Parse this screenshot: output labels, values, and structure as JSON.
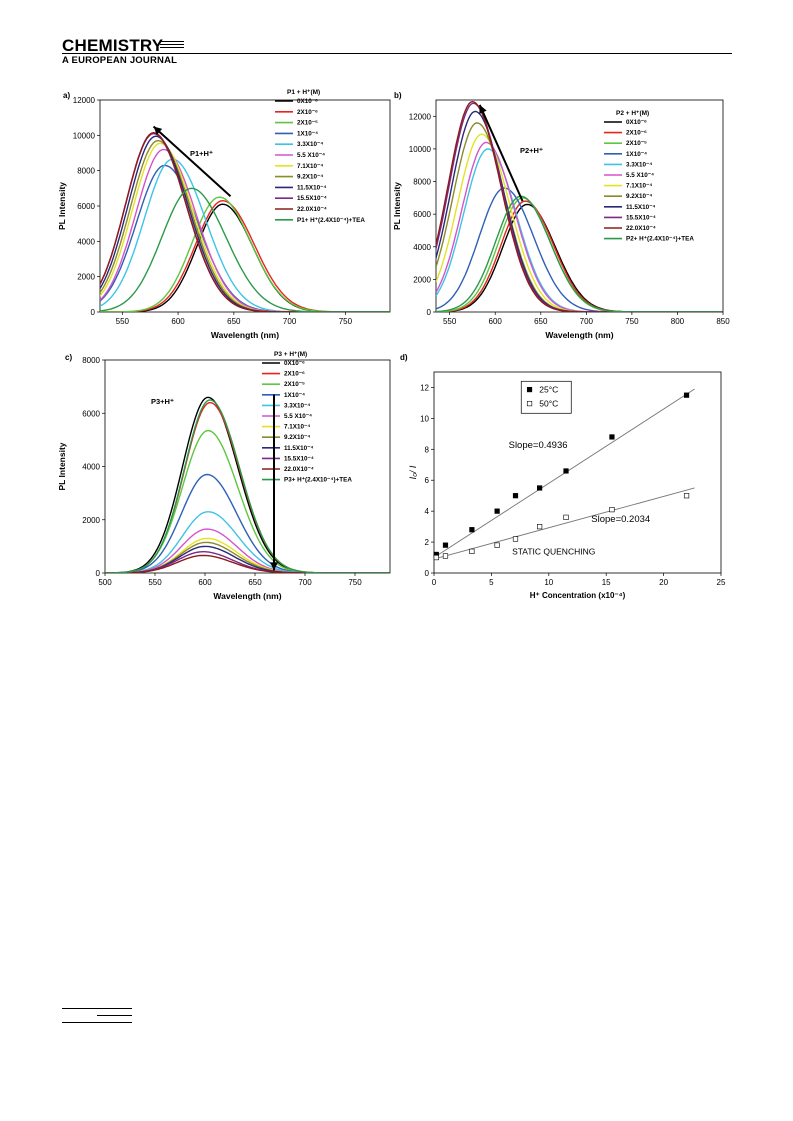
{
  "header": {
    "journal": "CHEMISTRY",
    "subtitle": "A EUROPEAN JOURNAL"
  },
  "chart_data": [
    {
      "type": "line",
      "panel_label": "a)",
      "xlabel": "Wavelength (nm)",
      "ylabel": "PL Intensity",
      "xlim": [
        530,
        790
      ],
      "ylim": [
        0,
        12000
      ],
      "xticks": [
        550,
        600,
        650,
        700,
        750
      ],
      "yticks": [
        0,
        2000,
        4000,
        6000,
        8000,
        10000,
        12000
      ],
      "legend_title": "P1 + H⁺(M)",
      "annotation": "P1+H⁺",
      "arrow": {
        "from": [
          647,
          6550
        ],
        "to": [
          578,
          10500
        ]
      },
      "series": [
        {
          "name": "0X10⁻⁶",
          "color": "#000000",
          "peak_x": 640,
          "peak_y": 6100,
          "width": 42
        },
        {
          "name": "2X10⁻⁶",
          "color": "#e8251d",
          "peak_x": 640,
          "peak_y": 6300,
          "width": 44
        },
        {
          "name": "2X10⁻⁵",
          "color": "#5ec640",
          "peak_x": 637,
          "peak_y": 6500,
          "width": 44
        },
        {
          "name": "1X10⁻⁴",
          "color": "#2f5fb6",
          "peak_x": 588,
          "peak_y": 8300,
          "width": 46
        },
        {
          "name": "3.3X10⁻⁴",
          "color": "#3ec3e6",
          "peak_x": 595,
          "peak_y": 8650,
          "width": 46
        },
        {
          "name": "5.5 X10⁻⁴",
          "color": "#d454c9",
          "peak_x": 587,
          "peak_y": 9200,
          "width": 45
        },
        {
          "name": "7.1X10⁻⁴",
          "color": "#e5e225",
          "peak_x": 584,
          "peak_y": 9550,
          "width": 45
        },
        {
          "name": "9.2X10⁻⁴",
          "color": "#8a8b2b",
          "peak_x": 582,
          "peak_y": 9700,
          "width": 45
        },
        {
          "name": "11.5X10⁻⁴",
          "color": "#2c2878",
          "peak_x": 580,
          "peak_y": 9950,
          "width": 45
        },
        {
          "name": "15.5X10⁻⁴",
          "color": "#7b2a86",
          "peak_x": 578,
          "peak_y": 10100,
          "width": 45
        },
        {
          "name": "22.0X10⁻⁴",
          "color": "#8e1b1b",
          "peak_x": 578,
          "peak_y": 10150,
          "width": 45
        },
        {
          "name": "P1+ H⁺(2.4X10⁻⁴)+TEA",
          "color": "#2a9a4a",
          "peak_x": 612,
          "peak_y": 7000,
          "width": 48
        }
      ]
    },
    {
      "type": "line",
      "panel_label": "b)",
      "xlabel": "Wavelength (nm)",
      "ylabel": "PL Intensity",
      "xlim": [
        535,
        850
      ],
      "ylim": [
        0,
        13000
      ],
      "xticks": [
        550,
        600,
        650,
        700,
        750,
        800,
        850
      ],
      "yticks": [
        0,
        2000,
        4000,
        6000,
        8000,
        10000,
        12000
      ],
      "legend_title": "P2 + H⁺(M)",
      "annotation": "P2+H⁺",
      "arrow": {
        "from": [
          630,
          6800
        ],
        "to": [
          583,
          12700
        ]
      },
      "series": [
        {
          "name": "0X10⁻⁶",
          "color": "#000000",
          "peak_x": 635,
          "peak_y": 6600,
          "width": 48
        },
        {
          "name": "2X10⁻⁶",
          "color": "#e8251d",
          "peak_x": 633,
          "peak_y": 6800,
          "width": 48
        },
        {
          "name": "2X10⁻⁵",
          "color": "#5ec640",
          "peak_x": 630,
          "peak_y": 7000,
          "width": 48
        },
        {
          "name": "1X10⁻⁴",
          "color": "#2f5fb6",
          "peak_x": 610,
          "peak_y": 7600,
          "width": 50
        },
        {
          "name": "3.3X10⁻⁴",
          "color": "#3ec3e6",
          "peak_x": 592,
          "peak_y": 10000,
          "width": 48
        },
        {
          "name": "5.5 X10⁻⁴",
          "color": "#d454c9",
          "peak_x": 590,
          "peak_y": 10400,
          "width": 48
        },
        {
          "name": "7.1X10⁻⁴",
          "color": "#e5e225",
          "peak_x": 585,
          "peak_y": 10900,
          "width": 48
        },
        {
          "name": "9.2X10⁻⁴",
          "color": "#8a8b2b",
          "peak_x": 580,
          "peak_y": 11600,
          "width": 48
        },
        {
          "name": "11.5X10⁻⁴",
          "color": "#2c2878",
          "peak_x": 578,
          "peak_y": 12300,
          "width": 48
        },
        {
          "name": "15.5X10⁻⁴",
          "color": "#7b2a86",
          "peak_x": 576,
          "peak_y": 12800,
          "width": 48
        },
        {
          "name": "22.0X10⁻⁴",
          "color": "#8e1b1b",
          "peak_x": 575,
          "peak_y": 12900,
          "width": 48
        },
        {
          "name": "P2+ H⁺(2.4X10⁻⁴)+TEA",
          "color": "#2a9a4a",
          "peak_x": 628,
          "peak_y": 7100,
          "width": 50
        }
      ]
    },
    {
      "type": "line",
      "panel_label": "c)",
      "xlabel": "Wavelength (nm)",
      "ylabel": "PL Intensity",
      "xlim": [
        500,
        785
      ],
      "ylim": [
        0,
        8000
      ],
      "xticks": [
        500,
        550,
        600,
        650,
        700,
        750
      ],
      "yticks": [
        0,
        2000,
        4000,
        6000,
        8000
      ],
      "legend_title": "P3 + H⁺(M)",
      "annotation": "P3+H⁺",
      "arrow": {
        "from": [
          669,
          6700
        ],
        "to": [
          669,
          100
        ]
      },
      "series": [
        {
          "name": "0X10⁻⁶",
          "color": "#000000",
          "peak_x": 603,
          "peak_y": 6600,
          "width": 46
        },
        {
          "name": "2X10⁻⁶",
          "color": "#e8251d",
          "peak_x": 605,
          "peak_y": 6400,
          "width": 46
        },
        {
          "name": "2X10⁻⁵",
          "color": "#5ec640",
          "peak_x": 603,
          "peak_y": 5350,
          "width": 46
        },
        {
          "name": "1X10⁻⁴",
          "color": "#2f5fb6",
          "peak_x": 602,
          "peak_y": 3700,
          "width": 46
        },
        {
          "name": "3.3X10⁻⁴",
          "color": "#3ec3e6",
          "peak_x": 603,
          "peak_y": 2300,
          "width": 46
        },
        {
          "name": "5.5 X10⁻⁴",
          "color": "#d454c9",
          "peak_x": 602,
          "peak_y": 1650,
          "width": 46
        },
        {
          "name": "7.1X10⁻⁴",
          "color": "#e5e225",
          "peak_x": 602,
          "peak_y": 1300,
          "width": 46
        },
        {
          "name": "9.2X10⁻⁴",
          "color": "#8a8b2b",
          "peak_x": 601,
          "peak_y": 1150,
          "width": 46
        },
        {
          "name": "11.5X10⁻⁴",
          "color": "#2c2878",
          "peak_x": 600,
          "peak_y": 1000,
          "width": 46
        },
        {
          "name": "15.5X10⁻⁴",
          "color": "#7b2a86",
          "peak_x": 598,
          "peak_y": 800,
          "width": 46
        },
        {
          "name": "22.0X10⁻⁴",
          "color": "#8e1b1b",
          "peak_x": 598,
          "peak_y": 660,
          "width": 46
        },
        {
          "name": "P3+ H⁺(2.4X10⁻⁴)+TEA",
          "color": "#2a9a4a",
          "peak_x": 605,
          "peak_y": 6500,
          "width": 46
        }
      ]
    },
    {
      "type": "scatter",
      "panel_label": "d)",
      "xlabel": "H⁺ Concentration (x10⁻⁴)",
      "ylabel": "I₀/ I",
      "xlim": [
        0,
        25
      ],
      "ylim": [
        0,
        13
      ],
      "xticks": [
        0,
        5,
        10,
        15,
        20,
        25
      ],
      "yticks": [
        0,
        2,
        4,
        6,
        8,
        10,
        12
      ],
      "annotations": [
        "Slope=0.4936",
        "Slope=0.2034",
        "STATIC QUENCHING"
      ],
      "series": [
        {
          "name": "25°C",
          "marker": "filled-square",
          "x": [
            0.2,
            1.0,
            3.3,
            5.5,
            7.1,
            9.2,
            11.5,
            15.5,
            22.0
          ],
          "y": [
            1.2,
            1.8,
            2.8,
            4.0,
            5.0,
            5.5,
            6.6,
            8.8,
            11.5
          ],
          "fit": {
            "x": [
              0,
              22.7
            ],
            "y": [
              1.0,
              11.9
            ]
          }
        },
        {
          "name": "50°C",
          "marker": "open-square",
          "x": [
            0.2,
            1.0,
            3.3,
            5.5,
            7.1,
            9.2,
            11.5,
            15.5,
            22.0
          ],
          "y": [
            1.0,
            1.1,
            1.4,
            1.8,
            2.2,
            3.0,
            3.6,
            4.1,
            5.0
          ],
          "fit": {
            "x": [
              0,
              22.7
            ],
            "y": [
              0.9,
              5.5
            ]
          }
        }
      ]
    }
  ]
}
